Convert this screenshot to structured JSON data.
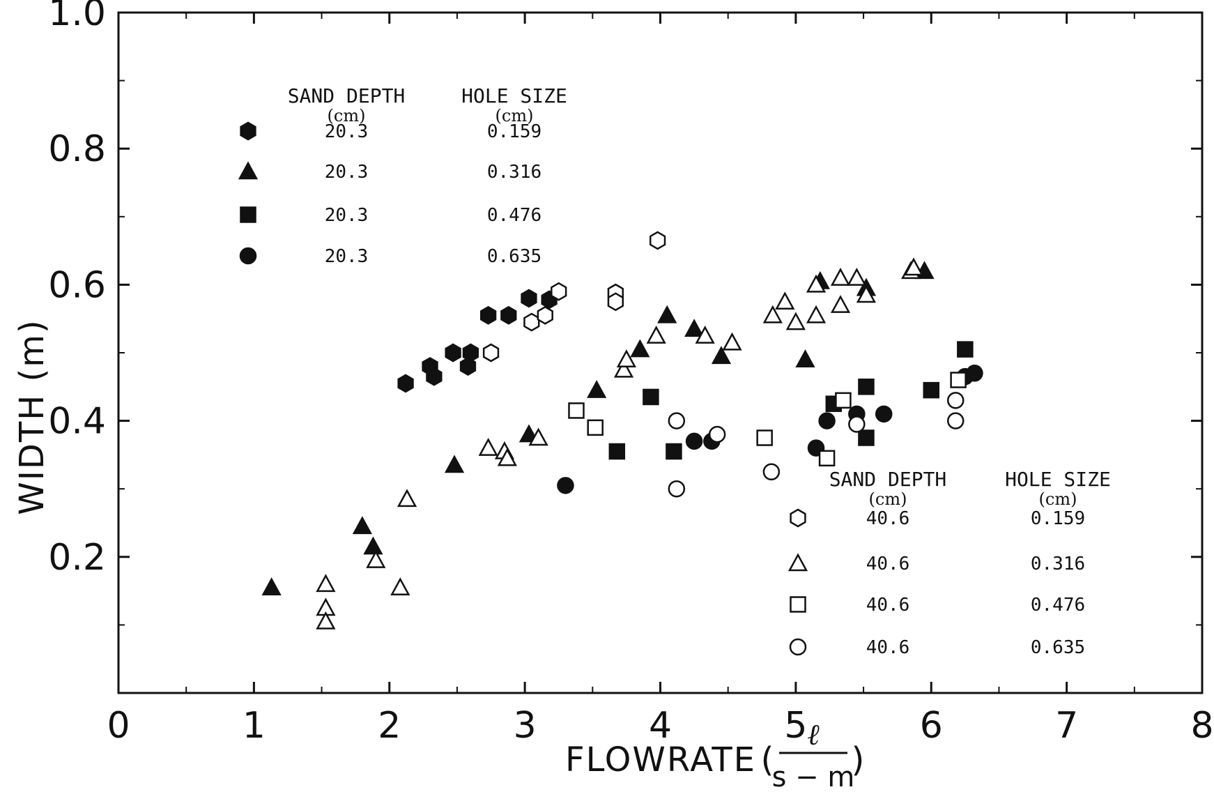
{
  "chart_data": {
    "type": "scatter",
    "xlabel": "FLOWRATE",
    "xlabel_unit_numerator": "ℓ",
    "xlabel_unit_denominator": "s − m",
    "ylabel": "WIDTH (m)",
    "xlim": [
      0,
      8
    ],
    "ylim": [
      0,
      1.0
    ],
    "x_ticks": [
      0,
      1,
      2,
      3,
      4,
      5,
      6,
      7,
      8
    ],
    "x_tick_labels": [
      "0",
      "1",
      "2",
      "3",
      "4",
      "5",
      "6",
      "7",
      "8"
    ],
    "y_ticks": [
      0.2,
      0.4,
      0.6,
      0.8,
      1.0
    ],
    "y_tick_labels": [
      "0.2",
      "0.4",
      "0.6",
      "0.8",
      "1.0"
    ],
    "grid": false,
    "legends": [
      {
        "placement": "top-left",
        "header_sand": "SAND DEPTH",
        "header_hole": "HOLE SIZE",
        "unit_sand": "(cm)",
        "unit_hole": "(cm)",
        "entries": [
          {
            "series": 0,
            "sand_depth": "20.3",
            "hole_size": "0.159"
          },
          {
            "series": 1,
            "sand_depth": "20.3",
            "hole_size": "0.316"
          },
          {
            "series": 2,
            "sand_depth": "20.3",
            "hole_size": "0.476"
          },
          {
            "series": 3,
            "sand_depth": "20.3",
            "hole_size": "0.635"
          }
        ]
      },
      {
        "placement": "bottom-right",
        "header_sand": "SAND DEPTH",
        "header_hole": "HOLE SIZE",
        "unit_sand": "(cm)",
        "unit_hole": "(cm)",
        "entries": [
          {
            "series": 4,
            "sand_depth": "40.6",
            "hole_size": "0.159"
          },
          {
            "series": 5,
            "sand_depth": "40.6",
            "hole_size": "0.316"
          },
          {
            "series": 6,
            "sand_depth": "40.6",
            "hole_size": "0.476"
          },
          {
            "series": 7,
            "sand_depth": "40.6",
            "hole_size": "0.635"
          }
        ]
      }
    ],
    "series": [
      {
        "marker": "hexagon",
        "filled": true,
        "points": [
          [
            2.12,
            0.455
          ],
          [
            2.3,
            0.48
          ],
          [
            2.33,
            0.465
          ],
          [
            2.47,
            0.5
          ],
          [
            2.58,
            0.48
          ],
          [
            2.6,
            0.5
          ],
          [
            2.73,
            0.555
          ],
          [
            2.88,
            0.555
          ],
          [
            3.03,
            0.58
          ],
          [
            3.18,
            0.578
          ]
        ]
      },
      {
        "marker": "triangle",
        "filled": true,
        "points": [
          [
            1.13,
            0.155
          ],
          [
            1.8,
            0.245
          ],
          [
            1.88,
            0.215
          ],
          [
            2.48,
            0.335
          ],
          [
            3.03,
            0.38
          ],
          [
            3.53,
            0.445
          ],
          [
            3.85,
            0.505
          ],
          [
            4.05,
            0.555
          ],
          [
            4.25,
            0.535
          ],
          [
            4.45,
            0.495
          ],
          [
            5.07,
            0.49
          ],
          [
            5.18,
            0.605
          ],
          [
            5.52,
            0.595
          ],
          [
            5.95,
            0.62
          ]
        ]
      },
      {
        "marker": "square",
        "filled": true,
        "points": [
          [
            3.68,
            0.355
          ],
          [
            3.93,
            0.435
          ],
          [
            4.1,
            0.355
          ],
          [
            5.28,
            0.425
          ],
          [
            5.52,
            0.45
          ],
          [
            5.52,
            0.375
          ],
          [
            6.0,
            0.445
          ],
          [
            6.25,
            0.505
          ]
        ]
      },
      {
        "marker": "circle",
        "filled": true,
        "points": [
          [
            3.3,
            0.305
          ],
          [
            4.25,
            0.37
          ],
          [
            4.38,
            0.37
          ],
          [
            5.15,
            0.36
          ],
          [
            5.23,
            0.4
          ],
          [
            5.45,
            0.41
          ],
          [
            5.65,
            0.41
          ],
          [
            6.25,
            0.465
          ],
          [
            6.32,
            0.47
          ]
        ]
      },
      {
        "marker": "hexagon",
        "filled": false,
        "points": [
          [
            2.75,
            0.5
          ],
          [
            3.05,
            0.545
          ],
          [
            3.15,
            0.555
          ],
          [
            3.25,
            0.59
          ],
          [
            3.67,
            0.588
          ],
          [
            3.67,
            0.575
          ],
          [
            3.98,
            0.665
          ]
        ]
      },
      {
        "marker": "triangle",
        "filled": false,
        "points": [
          [
            1.53,
            0.16
          ],
          [
            1.53,
            0.125
          ],
          [
            1.53,
            0.105
          ],
          [
            1.9,
            0.195
          ],
          [
            2.08,
            0.155
          ],
          [
            2.13,
            0.285
          ],
          [
            2.73,
            0.36
          ],
          [
            2.85,
            0.355
          ],
          [
            2.87,
            0.345
          ],
          [
            3.1,
            0.375
          ],
          [
            3.73,
            0.475
          ],
          [
            3.75,
            0.49
          ],
          [
            3.97,
            0.525
          ],
          [
            4.33,
            0.525
          ],
          [
            4.53,
            0.515
          ],
          [
            4.83,
            0.555
          ],
          [
            4.92,
            0.575
          ],
          [
            5.0,
            0.545
          ],
          [
            5.15,
            0.6
          ],
          [
            5.15,
            0.555
          ],
          [
            5.33,
            0.57
          ],
          [
            5.33,
            0.61
          ],
          [
            5.45,
            0.61
          ],
          [
            5.52,
            0.585
          ],
          [
            5.85,
            0.62
          ],
          [
            5.87,
            0.625
          ]
        ]
      },
      {
        "marker": "square",
        "filled": false,
        "points": [
          [
            3.38,
            0.415
          ],
          [
            3.52,
            0.39
          ],
          [
            4.77,
            0.375
          ],
          [
            5.23,
            0.345
          ],
          [
            5.35,
            0.43
          ],
          [
            6.2,
            0.46
          ]
        ]
      },
      {
        "marker": "circle",
        "filled": false,
        "points": [
          [
            4.12,
            0.4
          ],
          [
            4.12,
            0.3
          ],
          [
            4.42,
            0.38
          ],
          [
            4.82,
            0.325
          ],
          [
            5.45,
            0.395
          ],
          [
            6.18,
            0.43
          ],
          [
            6.18,
            0.4
          ]
        ]
      }
    ]
  }
}
